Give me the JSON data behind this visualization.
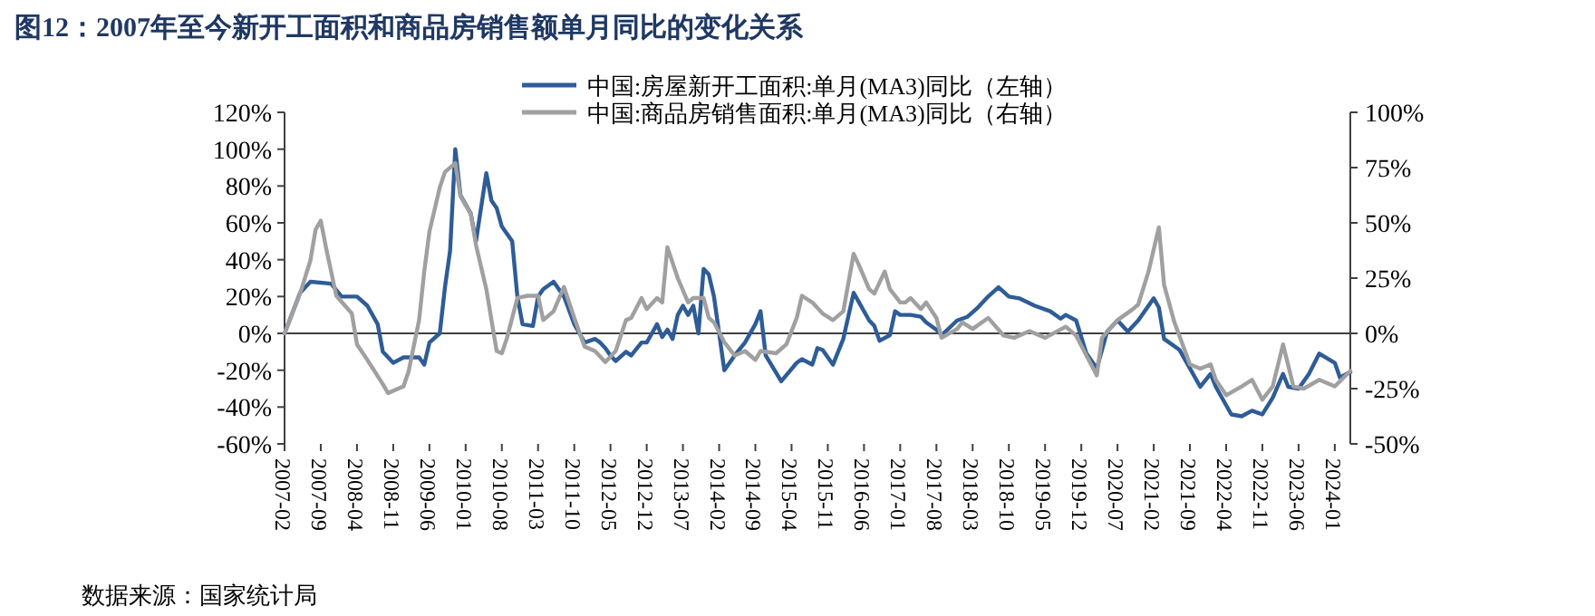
{
  "chart_data": {
    "type": "line",
    "title": "图12：2007年至今新开工面积和商品房销售额单月同比的变化关系",
    "annotations": [
      "数据来源：国家统计局"
    ],
    "legend": "top",
    "grid": false,
    "line_style": "solid",
    "marker": "none",
    "xlim": [
      "2007-02",
      "2024-04"
    ],
    "xticks": [
      "2007-02",
      "2007-09",
      "2008-04",
      "2008-11",
      "2009-06",
      "2010-01",
      "2010-08",
      "2011-03",
      "2011-10",
      "2012-05",
      "2012-12",
      "2013-07",
      "2014-02",
      "2014-09",
      "2015-04",
      "2015-11",
      "2016-06",
      "2017-01",
      "2017-08",
      "2018-03",
      "2018-10",
      "2019-05",
      "2019-12",
      "2020-07",
      "2021-02",
      "2021-09",
      "2022-04",
      "2022-11",
      "2023-06",
      "2024-01"
    ],
    "ylim": [
      -60,
      120
    ],
    "yticks": [
      {
        "value": -60,
        "label": "-60%"
      },
      {
        "value": -40,
        "label": "-40%"
      },
      {
        "value": -20,
        "label": "-20%"
      },
      {
        "value": 0,
        "label": "0%"
      },
      {
        "value": 20,
        "label": "20%"
      },
      {
        "value": 40,
        "label": "40%"
      },
      {
        "value": 60,
        "label": "60%"
      },
      {
        "value": 80,
        "label": "80%"
      },
      {
        "value": 100,
        "label": "100%"
      },
      {
        "value": 120,
        "label": "120%"
      }
    ],
    "y2lim": [
      -50,
      100
    ],
    "y2ticks": [
      {
        "value": -50,
        "label": "-50%"
      },
      {
        "value": -25,
        "label": "-25%"
      },
      {
        "value": 0,
        "label": "0%"
      },
      {
        "value": 25,
        "label": "25%"
      },
      {
        "value": 50,
        "label": "50%"
      },
      {
        "value": 75,
        "label": "75%"
      },
      {
        "value": 100,
        "label": "100%"
      }
    ],
    "ref_lines": [
      {
        "axis": "y",
        "value": 0,
        "color": "#404040",
        "line_style": "solid"
      }
    ],
    "series": [
      {
        "name": "中国:房屋新开工面积:单月(MA3)同比（左轴）",
        "color": "#2e5c97",
        "axis": "y",
        "x": [
          "2007-02",
          "2007-05",
          "2007-07",
          "2007-11",
          "2008-01",
          "2008-04",
          "2008-06",
          "2008-08",
          "2008-09",
          "2008-11",
          "2009-01",
          "2009-04",
          "2009-05",
          "2009-06",
          "2009-08",
          "2009-09",
          "2009-10",
          "2009-11",
          "2009-12",
          "2010-02",
          "2010-03",
          "2010-05",
          "2010-06",
          "2010-07",
          "2010-08",
          "2010-10",
          "2010-11",
          "2010-12",
          "2011-02",
          "2011-03",
          "2011-04",
          "2011-06",
          "2011-08",
          "2011-10",
          "2011-12",
          "2012-02",
          "2012-03",
          "2012-04",
          "2012-05",
          "2012-06",
          "2012-08",
          "2012-09",
          "2012-11",
          "2012-12",
          "2013-01",
          "2013-02",
          "2013-03",
          "2013-04",
          "2013-05",
          "2013-06",
          "2013-07",
          "2013-08",
          "2013-09",
          "2013-10",
          "2013-11",
          "2013-12",
          "2014-01",
          "2014-02",
          "2014-03",
          "2014-05",
          "2014-07",
          "2014-09",
          "2014-10",
          "2014-11",
          "2015-02",
          "2015-05",
          "2015-06",
          "2015-08",
          "2015-09",
          "2015-10",
          "2015-12",
          "2016-02",
          "2016-04",
          "2016-05",
          "2016-07",
          "2016-08",
          "2016-09",
          "2016-11",
          "2016-12",
          "2017-01",
          "2017-03",
          "2017-05",
          "2017-06",
          "2017-08",
          "2017-09",
          "2017-12",
          "2018-02",
          "2018-04",
          "2018-06",
          "2018-08",
          "2018-10",
          "2018-12",
          "2019-03",
          "2019-06",
          "2019-08",
          "2019-09",
          "2019-11",
          "2020-01",
          "2020-03",
          "2020-05",
          "2020-07",
          "2020-09",
          "2020-11",
          "2021-02",
          "2021-03",
          "2021-04",
          "2021-07",
          "2021-09",
          "2021-11",
          "2022-01",
          "2022-02",
          "2022-05",
          "2022-07",
          "2022-09",
          "2022-11",
          "2023-01",
          "2023-03",
          "2023-04",
          "2023-06",
          "2023-08",
          "2023-10",
          "2024-01",
          "2024-02",
          "2024-04"
        ],
        "values": [
          0,
          22,
          28,
          27,
          20,
          20,
          15,
          5,
          -10,
          -16,
          -13,
          -13,
          -17,
          -5,
          0,
          25,
          45,
          100,
          75,
          65,
          50,
          87,
          72,
          68,
          58,
          50,
          20,
          5,
          4,
          20,
          24,
          28,
          20,
          5,
          -5,
          -3,
          -5,
          -8,
          -12,
          -15,
          -10,
          -12,
          -5,
          -5,
          0,
          5,
          -2,
          2,
          -3,
          10,
          15,
          10,
          15,
          0,
          35,
          32,
          20,
          0,
          -20,
          -12,
          -5,
          5,
          12,
          -12,
          -26,
          -16,
          -14,
          -17,
          -8,
          -9,
          -17,
          -3,
          22,
          17,
          7,
          4,
          -4,
          -1,
          12,
          10,
          10,
          9,
          6,
          2,
          -1,
          7,
          9,
          14,
          20,
          25,
          20,
          19,
          15,
          12,
          8,
          10,
          7,
          -11,
          -19,
          1,
          7,
          1,
          7,
          19,
          14,
          -3,
          -9,
          -19,
          -29,
          -22,
          -29,
          -44,
          -45,
          -42,
          -44,
          -35,
          -22,
          -29,
          -30,
          -22,
          -11,
          -16,
          -24,
          -21
        ]
      },
      {
        "name": "中国:商品房销售面积:单月(MA3)同比（右轴）",
        "color": "#a0a0a0",
        "axis": "y2",
        "x": [
          "2007-02",
          "2007-05",
          "2007-07",
          "2007-08",
          "2007-09",
          "2007-10",
          "2007-12",
          "2008-03",
          "2008-04",
          "2008-06",
          "2008-09",
          "2008-10",
          "2009-01",
          "2009-02",
          "2009-04",
          "2009-05",
          "2009-06",
          "2009-08",
          "2009-09",
          "2009-11",
          "2009-12",
          "2010-02",
          "2010-03",
          "2010-05",
          "2010-06",
          "2010-07",
          "2010-08",
          "2010-09",
          "2010-11",
          "2011-01",
          "2011-03",
          "2011-04",
          "2011-06",
          "2011-08",
          "2011-10",
          "2011-12",
          "2012-02",
          "2012-04",
          "2012-06",
          "2012-08",
          "2012-09",
          "2012-11",
          "2012-12",
          "2013-02",
          "2013-03",
          "2013-04",
          "2013-06",
          "2013-08",
          "2013-09",
          "2013-11",
          "2013-12",
          "2014-01",
          "2014-03",
          "2014-05",
          "2014-07",
          "2014-09",
          "2014-10",
          "2015-01",
          "2015-03",
          "2015-05",
          "2015-06",
          "2015-08",
          "2015-10",
          "2015-12",
          "2016-02",
          "2016-04",
          "2016-05",
          "2016-07",
          "2016-08",
          "2016-10",
          "2016-11",
          "2017-01",
          "2017-02",
          "2017-03",
          "2017-05",
          "2017-06",
          "2017-08",
          "2017-09",
          "2017-12",
          "2018-01",
          "2018-03",
          "2018-06",
          "2018-09",
          "2018-11",
          "2019-02",
          "2019-05",
          "2019-09",
          "2019-11",
          "2020-01",
          "2020-03",
          "2020-04",
          "2020-07",
          "2020-10",
          "2020-11",
          "2021-01",
          "2021-03",
          "2021-04",
          "2021-06",
          "2021-09",
          "2021-11",
          "2022-01",
          "2022-02",
          "2022-04",
          "2022-07",
          "2022-09",
          "2022-11",
          "2023-01",
          "2023-03",
          "2023-05",
          "2023-07",
          "2023-10",
          "2024-01",
          "2024-04"
        ],
        "values": [
          0,
          18,
          33,
          47,
          51,
          39,
          17,
          9,
          -5,
          -12,
          -23,
          -27,
          -24,
          -17,
          6,
          28,
          46,
          66,
          73,
          77,
          62,
          54,
          40,
          20,
          6,
          -8,
          -9,
          -2,
          16,
          17,
          17,
          6,
          10,
          21,
          7,
          -6,
          -8,
          -13,
          -8,
          6,
          7,
          16,
          11,
          16,
          14,
          39,
          25,
          14,
          16,
          16,
          7,
          5,
          -4,
          -10,
          -8,
          -12,
          -8,
          -9,
          -5,
          7,
          17,
          14,
          9,
          6,
          10,
          36,
          31,
          20,
          18,
          28,
          20,
          14,
          14,
          16,
          11,
          14,
          7,
          -2,
          2,
          5,
          2,
          7,
          -1,
          -2,
          1,
          -2,
          3,
          -1,
          -10,
          -19,
          -2,
          6,
          11,
          13,
          28,
          48,
          22,
          5,
          -14,
          -16,
          -14,
          -21,
          -28,
          -24,
          -21,
          -30,
          -24,
          -5,
          -24,
          -25,
          -21,
          -24,
          -17
        ]
      }
    ]
  }
}
